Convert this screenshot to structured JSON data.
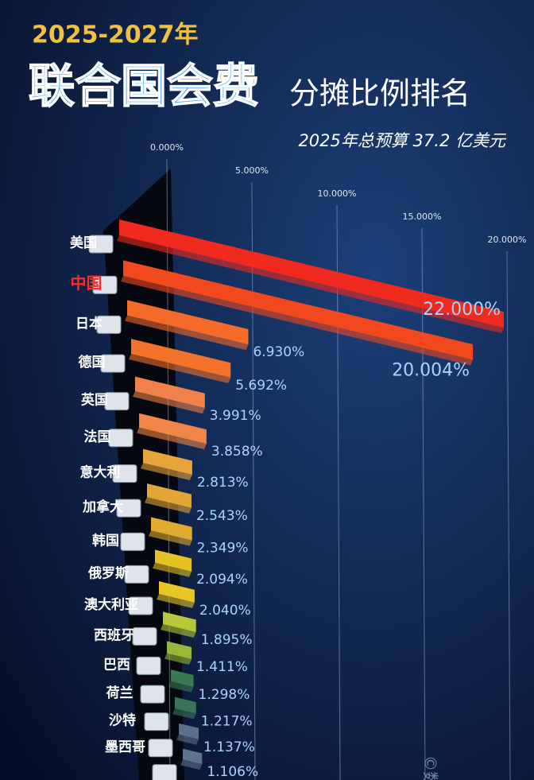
{
  "chart_data": {
    "type": "bar3d",
    "title_year": "2025-2027年",
    "title_main": "联合国会费",
    "title_sub": "分摊比例排名",
    "note": "2025年总预算 37.2 亿美元",
    "watermark": "©数观",
    "categories": [
      "美国",
      "中国",
      "日本",
      "德国",
      "英国",
      "法国",
      "意大利",
      "加拿大",
      "韩国",
      "俄罗斯",
      "澳大利亚",
      "西班牙",
      "巴西",
      "荷兰",
      "沙特",
      "墨西哥",
      null
    ],
    "highlight": "中国",
    "values": [
      22.0,
      20.004,
      6.93,
      5.692,
      3.991,
      3.858,
      2.813,
      2.543,
      2.349,
      2.094,
      2.04,
      1.895,
      1.411,
      1.298,
      1.217,
      1.137,
      1.106
    ],
    "value_labels": [
      "22.000%",
      "20.004%",
      "6.930%",
      "5.692%",
      "3.991%",
      "3.858%",
      "2.813%",
      "2.543%",
      "2.349%",
      "2.094%",
      "2.040%",
      "1.895%",
      "1.411%",
      "1.298%",
      "1.217%",
      "1.137%",
      "1.106%"
    ],
    "colors": [
      "#f02a1e",
      "#f2481e",
      "#f46a28",
      "#f2722a",
      "#f0814a",
      "#ef8648",
      "#e6a43a",
      "#e2a636",
      "#e0ac30",
      "#e4c222",
      "#e6c628",
      "#b8c838",
      "#98b83a",
      "#3a7a52",
      "#3c7258",
      "#5a7088",
      "#5c7490"
    ],
    "xlim": [
      0,
      22
    ],
    "xticks": [
      {
        "value": 0,
        "label": "0.000%"
      },
      {
        "value": 5,
        "label": "5.000%"
      },
      {
        "value": 10,
        "label": "10.000%"
      },
      {
        "value": 15,
        "label": "15.000%"
      },
      {
        "value": 20,
        "label": "20.000%"
      }
    ],
    "grid": true
  }
}
